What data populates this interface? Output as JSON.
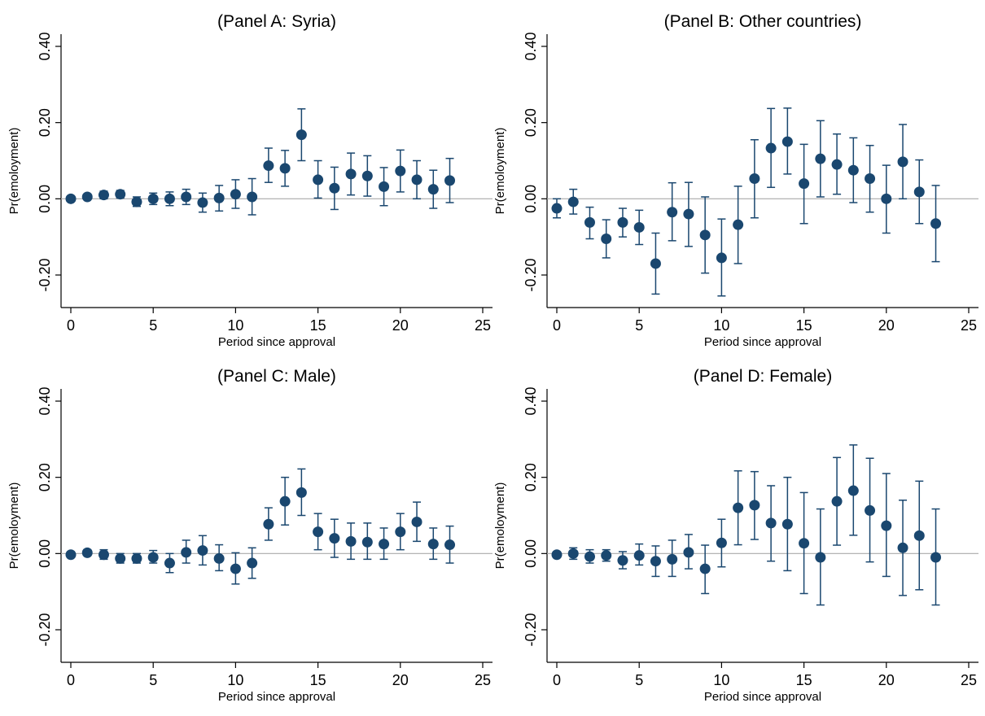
{
  "colors": {
    "marker": "#1a476f",
    "zero_line": "#a9a9a9",
    "axis": "#000000",
    "background": "#ffffff"
  },
  "chart_data": [
    {
      "type": "scatter",
      "title": "(Panel A: Syria)",
      "xlabel": "Period since approval",
      "ylabel": "Pr(emoloyment)",
      "xlim": [
        0,
        25
      ],
      "ylim": [
        -0.2,
        0.4
      ],
      "xticks": [
        "0",
        "5",
        "10",
        "15",
        "20",
        "25"
      ],
      "yticks": [
        "-0.20",
        "0.00",
        "0.20",
        "0.40"
      ],
      "grid": false,
      "zero_line": true,
      "x": [
        0,
        1,
        2,
        3,
        4,
        5,
        6,
        7,
        8,
        9,
        10,
        11,
        12,
        13,
        14,
        15,
        16,
        17,
        18,
        19,
        20,
        21,
        22,
        23
      ],
      "y": [
        0.0,
        0.005,
        0.01,
        0.012,
        -0.008,
        0.0,
        0.0,
        0.005,
        -0.01,
        0.002,
        0.012,
        0.005,
        0.087,
        0.08,
        0.168,
        0.05,
        0.028,
        0.065,
        0.06,
        0.032,
        0.073,
        0.05,
        0.025,
        0.048
      ],
      "lower": [
        -0.005,
        -0.002,
        0.0,
        0.002,
        -0.02,
        -0.015,
        -0.018,
        -0.015,
        -0.035,
        -0.032,
        -0.025,
        -0.042,
        0.043,
        0.033,
        0.1,
        0.002,
        -0.028,
        0.01,
        0.007,
        -0.018,
        0.018,
        0.0,
        -0.025,
        -0.01
      ],
      "upper": [
        0.005,
        0.012,
        0.02,
        0.022,
        0.005,
        0.015,
        0.018,
        0.025,
        0.015,
        0.035,
        0.05,
        0.053,
        0.133,
        0.127,
        0.236,
        0.1,
        0.083,
        0.12,
        0.113,
        0.082,
        0.128,
        0.1,
        0.075,
        0.106
      ]
    },
    {
      "type": "scatter",
      "title": "(Panel B: Other countries)",
      "xlabel": "Period since approval",
      "ylabel": "Pr(emoloyment)",
      "xlim": [
        0,
        25
      ],
      "ylim": [
        -0.2,
        0.4
      ],
      "xticks": [
        "0",
        "5",
        "10",
        "15",
        "20",
        "25"
      ],
      "yticks": [
        "-0.20",
        "0.00",
        "0.20",
        "0.40"
      ],
      "grid": false,
      "zero_line": true,
      "x": [
        0,
        1,
        2,
        3,
        4,
        5,
        6,
        7,
        8,
        9,
        10,
        11,
        12,
        13,
        14,
        15,
        16,
        17,
        18,
        19,
        20,
        21,
        22,
        23
      ],
      "y": [
        -0.025,
        -0.008,
        -0.062,
        -0.105,
        -0.062,
        -0.075,
        -0.17,
        -0.035,
        -0.04,
        -0.095,
        -0.155,
        -0.068,
        0.053,
        0.133,
        0.15,
        0.04,
        0.105,
        0.09,
        0.075,
        0.053,
        0.0,
        0.097,
        0.018,
        -0.065
      ],
      "lower": [
        -0.05,
        -0.04,
        -0.105,
        -0.155,
        -0.1,
        -0.12,
        -0.25,
        -0.11,
        -0.125,
        -0.195,
        -0.255,
        -0.17,
        -0.05,
        0.03,
        0.065,
        -0.065,
        0.005,
        0.012,
        -0.01,
        -0.035,
        -0.09,
        0.0,
        -0.065,
        -0.165
      ],
      "upper": [
        0.0,
        0.025,
        -0.022,
        -0.055,
        -0.025,
        -0.03,
        -0.09,
        0.042,
        0.043,
        0.005,
        -0.053,
        0.033,
        0.155,
        0.237,
        0.238,
        0.143,
        0.205,
        0.17,
        0.16,
        0.14,
        0.088,
        0.195,
        0.102,
        0.035
      ]
    },
    {
      "type": "scatter",
      "title": "(Panel C: Male)",
      "xlabel": "Period since approval",
      "ylabel": "Pr(emoloyment)",
      "xlim": [
        0,
        25
      ],
      "ylim": [
        -0.2,
        0.4
      ],
      "xticks": [
        "0",
        "5",
        "10",
        "15",
        "20",
        "25"
      ],
      "yticks": [
        "-0.20",
        "0.00",
        "0.20",
        "0.40"
      ],
      "grid": false,
      "zero_line": true,
      "x": [
        0,
        1,
        2,
        3,
        4,
        5,
        6,
        7,
        8,
        9,
        10,
        11,
        12,
        13,
        14,
        15,
        16,
        17,
        18,
        19,
        20,
        21,
        22,
        23
      ],
      "y": [
        -0.003,
        0.002,
        -0.003,
        -0.013,
        -0.013,
        -0.01,
        -0.025,
        0.003,
        0.008,
        -0.013,
        -0.04,
        -0.025,
        0.077,
        0.137,
        0.16,
        0.057,
        0.04,
        0.032,
        0.03,
        0.025,
        0.057,
        0.083,
        0.025,
        0.023
      ],
      "lower": [
        -0.008,
        -0.005,
        -0.015,
        -0.025,
        -0.025,
        -0.025,
        -0.05,
        -0.025,
        -0.03,
        -0.045,
        -0.08,
        -0.065,
        0.035,
        0.075,
        0.1,
        0.01,
        -0.01,
        -0.015,
        -0.015,
        -0.015,
        0.01,
        0.032,
        -0.015,
        -0.025
      ],
      "upper": [
        0.002,
        0.01,
        0.01,
        0.0,
        0.0,
        0.008,
        0.0,
        0.035,
        0.047,
        0.023,
        0.002,
        0.015,
        0.12,
        0.2,
        0.222,
        0.105,
        0.09,
        0.08,
        0.08,
        0.067,
        0.105,
        0.135,
        0.067,
        0.072
      ]
    },
    {
      "type": "scatter",
      "title": "(Panel D: Female)",
      "xlabel": "Period since approval",
      "ylabel": "Pr(emoloyment)",
      "xlim": [
        0,
        25
      ],
      "ylim": [
        -0.2,
        0.4
      ],
      "xticks": [
        "0",
        "5",
        "10",
        "15",
        "20",
        "25"
      ],
      "yticks": [
        "-0.20",
        "0.00",
        "0.20",
        "0.40"
      ],
      "grid": false,
      "zero_line": true,
      "x": [
        0,
        1,
        2,
        3,
        4,
        5,
        6,
        7,
        8,
        9,
        10,
        11,
        12,
        13,
        14,
        15,
        16,
        17,
        18,
        19,
        20,
        21,
        22,
        23
      ],
      "y": [
        -0.003,
        0.0,
        -0.008,
        -0.005,
        -0.018,
        -0.005,
        -0.02,
        -0.015,
        0.003,
        -0.04,
        0.028,
        0.12,
        0.127,
        0.08,
        0.077,
        0.027,
        -0.01,
        0.137,
        0.165,
        0.113,
        0.073,
        0.015,
        0.047,
        -0.01
      ],
      "lower": [
        -0.008,
        -0.015,
        -0.025,
        -0.02,
        -0.04,
        -0.03,
        -0.06,
        -0.06,
        -0.04,
        -0.105,
        -0.035,
        0.023,
        0.037,
        -0.02,
        -0.045,
        -0.105,
        -0.135,
        0.022,
        0.048,
        -0.022,
        -0.06,
        -0.11,
        -0.095,
        -0.135
      ],
      "upper": [
        0.002,
        0.015,
        0.01,
        0.01,
        0.005,
        0.025,
        0.02,
        0.035,
        0.05,
        0.022,
        0.09,
        0.217,
        0.215,
        0.178,
        0.2,
        0.16,
        0.117,
        0.252,
        0.285,
        0.25,
        0.21,
        0.14,
        0.19,
        0.117
      ]
    }
  ]
}
